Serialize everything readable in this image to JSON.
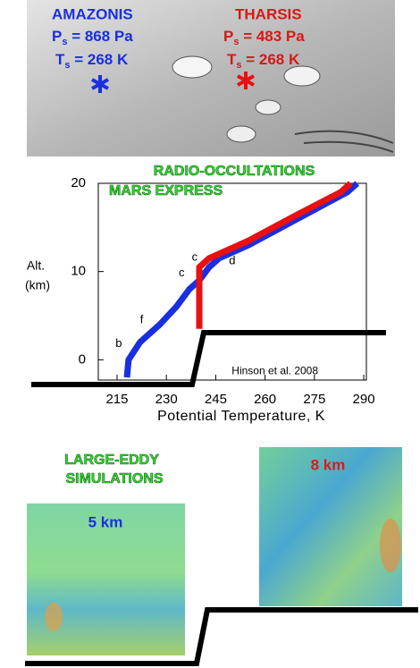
{
  "map": {
    "left": {
      "name": "AMAZONIS",
      "p": "P",
      "p_sub": "s",
      "p_text": " =  868 Pa",
      "t": "T",
      "t_sub": "s",
      "t_text": " = 268 K"
    },
    "right": {
      "name": "THARSIS",
      "p": "P",
      "p_sub": "s",
      "p_text": " = 483 Pa",
      "t": "T",
      "t_sub": "s",
      "t_text": " = 268 K"
    }
  },
  "chart_data": {
    "type": "line",
    "title": "RADIO-OCCULTATIONS",
    "subtitle": "MARS EXPRESS",
    "y_label": [
      "Alt.",
      "(km)"
    ],
    "x_label": "Potential Temperature, K",
    "xlim": [
      209.3,
      290.8
    ],
    "ylim": [
      -2.3,
      20
    ],
    "xticks": [
      215,
      230,
      245,
      260,
      275,
      290
    ],
    "yticks": [
      0,
      10,
      20
    ],
    "series": [
      {
        "color": "#1a2fe0",
        "x": [
          218,
          218.5,
          222,
          228,
          233,
          237,
          240,
          243,
          246,
          255,
          270,
          285,
          288
        ],
        "y": [
          -2,
          0,
          2,
          4,
          6,
          8,
          9,
          10.5,
          11.5,
          13,
          16,
          19,
          20
        ]
      },
      {
        "color": "#e81010",
        "x": [
          240,
          240,
          243,
          255,
          270,
          283,
          286
        ],
        "y": [
          3.5,
          10.5,
          11.5,
          13.5,
          16.5,
          19,
          20
        ]
      }
    ],
    "annotations": [
      {
        "text": "b",
        "x": 216.5,
        "y": 1.8
      },
      {
        "text": "f",
        "x": 223,
        "y": 4.5
      },
      {
        "text": "c",
        "x": 235.5,
        "y": 9.8
      },
      {
        "text": "c",
        "x": 239.5,
        "y": 11.6
      },
      {
        "text": "d",
        "x": 251,
        "y": 11.2
      },
      {
        "text": "Hinson et al. 2008",
        "x": 263,
        "y": -1.3
      }
    ]
  },
  "les": {
    "title": [
      "LARGE-EDDY",
      "SIMULATIONS"
    ],
    "left_panel": "5 km",
    "right_panel": "8 km"
  }
}
